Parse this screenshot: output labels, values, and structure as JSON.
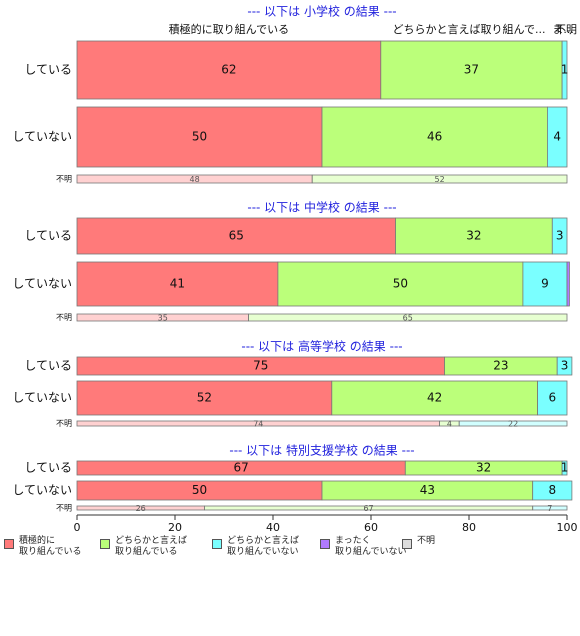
{
  "chart_data": {
    "type": "bar",
    "orientation": "horizontal",
    "stacked": true,
    "xlim": [
      0,
      100
    ],
    "x_ticks": [
      0,
      20,
      40,
      60,
      80,
      100
    ],
    "legend_position": "bottom",
    "series": [
      {
        "name": "積極的に\n取り組んでいる",
        "color": "#ff7a7a"
      },
      {
        "name": "どちらかと言えば\n取り組んでいる",
        "color": "#bbff7a"
      },
      {
        "name": "どちらかと言えば\n取り組んでいない",
        "color": "#7affff"
      },
      {
        "name": "まったく\n取り組んでいない",
        "color": "#b07aff"
      },
      {
        "name": "不明",
        "color": "#dddddd"
      }
    ],
    "panels": [
      {
        "title": "--- 以下は 小学校 の結果 ---",
        "top_labels": [
          {
            "text": "積極的に取り組んでいる",
            "x": 31
          },
          {
            "text": "どちらかと言えば取り組んで...",
            "x": 80
          },
          {
            "text": "ま...",
            "x": 99.2
          },
          {
            "text": "不明",
            "x": 100
          }
        ],
        "rows": [
          {
            "label": "している",
            "values": [
              62,
              37,
              1,
              0,
              0
            ],
            "labels": [
              "62",
              "37",
              "1",
              "",
              ""
            ]
          },
          {
            "label": "していない",
            "values": [
              50,
              46,
              4,
              0,
              0
            ],
            "labels": [
              "50",
              "46",
              "4",
              "",
              ""
            ]
          },
          {
            "label": "不明",
            "values": [
              48,
              52,
              0,
              0,
              0
            ],
            "labels": [
              "48",
              "52",
              "",
              "",
              ""
            ]
          }
        ]
      },
      {
        "title": "--- 以下は 中学校 の結果 ---",
        "top_labels": [],
        "rows": [
          {
            "label": "している",
            "values": [
              65,
              32,
              3,
              0,
              0
            ],
            "labels": [
              "65",
              "32",
              "3",
              "",
              ""
            ]
          },
          {
            "label": "していない",
            "values": [
              41,
              50,
              9,
              0.5,
              0
            ],
            "labels": [
              "41",
              "50",
              "9",
              "",
              ""
            ]
          },
          {
            "label": "不明",
            "values": [
              35,
              65,
              0,
              0,
              0
            ],
            "labels": [
              "35",
              "65",
              "",
              "",
              ""
            ]
          }
        ]
      },
      {
        "title": "--- 以下は 高等学校 の結果 ---",
        "top_labels": [],
        "rows": [
          {
            "label": "している",
            "values": [
              75,
              23,
              3,
              0,
              0
            ],
            "labels": [
              "75",
              "23",
              "3",
              "",
              ""
            ]
          },
          {
            "label": "していない",
            "values": [
              52,
              42,
              6,
              0,
              0
            ],
            "labels": [
              "52",
              "42",
              "6",
              "",
              ""
            ]
          },
          {
            "label": "不明",
            "values": [
              74,
              4,
              22,
              0,
              0
            ],
            "labels": [
              "74",
              "4",
              "22",
              "",
              ""
            ]
          }
        ]
      },
      {
        "title": "--- 以下は 特別支援学校 の結果 ---",
        "top_labels": [],
        "rows": [
          {
            "label": "している",
            "values": [
              67,
              32,
              1,
              0,
              0
            ],
            "labels": [
              "67",
              "32",
              "1",
              "",
              ""
            ]
          },
          {
            "label": "していない",
            "values": [
              50,
              43,
              8,
              0,
              0
            ],
            "labels": [
              "50",
              "43",
              "8",
              "",
              ""
            ]
          },
          {
            "label": "不明",
            "values": [
              26,
              67,
              7,
              0,
              0
            ],
            "labels": [
              "26",
              "67",
              "7",
              "",
              ""
            ]
          }
        ]
      }
    ]
  }
}
